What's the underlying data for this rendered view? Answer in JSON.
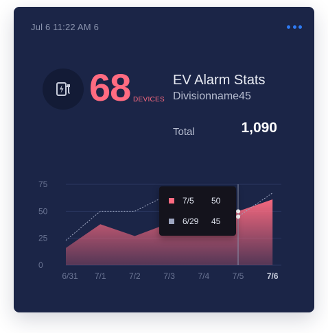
{
  "card": {
    "timestamp": "Jul 6 11:22 AM 6",
    "menu_icon": "more-horizontal-icon",
    "device_icon": "ev-charger-icon",
    "device_count": "68",
    "device_unit": "DEVICES",
    "title": "EV Alarm Stats",
    "division": "Divisionname45",
    "total_label": "Total",
    "total_value": "1,090"
  },
  "colors": {
    "card_bg": "#1b2547",
    "accent": "#ff6b81",
    "menu": "#2e7bf5",
    "secondary_swatch": "#9ea6c0"
  },
  "tooltip": {
    "rows": [
      {
        "date": "7/5",
        "value": "50",
        "color": "#ff6b81"
      },
      {
        "date": "6/29",
        "value": "45",
        "color": "#9ea6c0"
      }
    ]
  },
  "chart_data": {
    "type": "area",
    "categories": [
      "6/31",
      "7/1",
      "7/2",
      "7/3",
      "7/4",
      "7/5",
      "7/6"
    ],
    "ylim": [
      0,
      75
    ],
    "yticks": [
      "0",
      "25",
      "50",
      "75"
    ],
    "grid": true,
    "active_category": "7/6",
    "hover_category": "7/5",
    "series": [
      {
        "style": "area",
        "color": "#ff6b81",
        "values": [
          16,
          38,
          27,
          39,
          36,
          50,
          61
        ]
      },
      {
        "style": "dotted-line",
        "color": "#9ea6c0",
        "values": [
          23,
          50,
          50,
          66,
          56,
          45,
          67
        ]
      }
    ]
  }
}
